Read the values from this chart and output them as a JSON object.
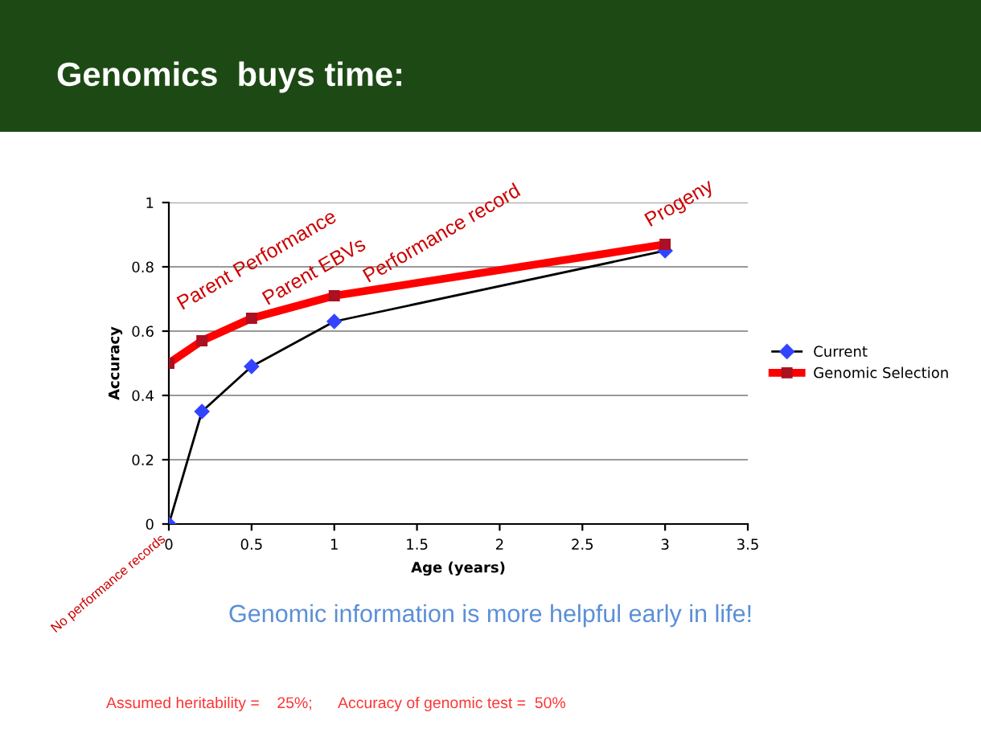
{
  "chart_data": {
    "type": "line",
    "title": "Genomics  buys time:",
    "xlabel": "Age (years)",
    "ylabel": "Accuracy",
    "x": [
      0,
      0.2,
      0.5,
      1,
      3
    ],
    "series": [
      {
        "name": "Current",
        "color": "#000000",
        "marker": "diamond",
        "values": [
          0,
          0.35,
          0.49,
          0.63,
          0.85
        ]
      },
      {
        "name": "Genomic Selection",
        "color": "#ff0000",
        "marker": "square",
        "values": [
          0.5,
          0.57,
          0.64,
          0.71,
          0.87
        ]
      }
    ],
    "xlim": [
      0,
      3.5
    ],
    "xticks": [
      0,
      0.5,
      1,
      1.5,
      2,
      2.5,
      3,
      3.5
    ],
    "ylim": [
      0,
      1
    ],
    "yticks": [
      0,
      0.2,
      0.4,
      0.6,
      0.8,
      1
    ],
    "grid": "y",
    "legend": "right",
    "annotations": [
      {
        "text": "No performance records",
        "x": 0,
        "y": 0
      },
      {
        "text": "Parent Performance",
        "x": 0.2,
        "y": 0.57
      },
      {
        "text": "Parent EBVs",
        "x": 0.5,
        "y": 0.64
      },
      {
        "text": "Performance record",
        "x": 1,
        "y": 0.71
      },
      {
        "text": "Progeny",
        "x": 3,
        "y": 0.87
      },
      "Genomic information is more helpful early in life!",
      "Assumed heritability =    25%;      Accuracy of genomic test =  50%"
    ]
  }
}
